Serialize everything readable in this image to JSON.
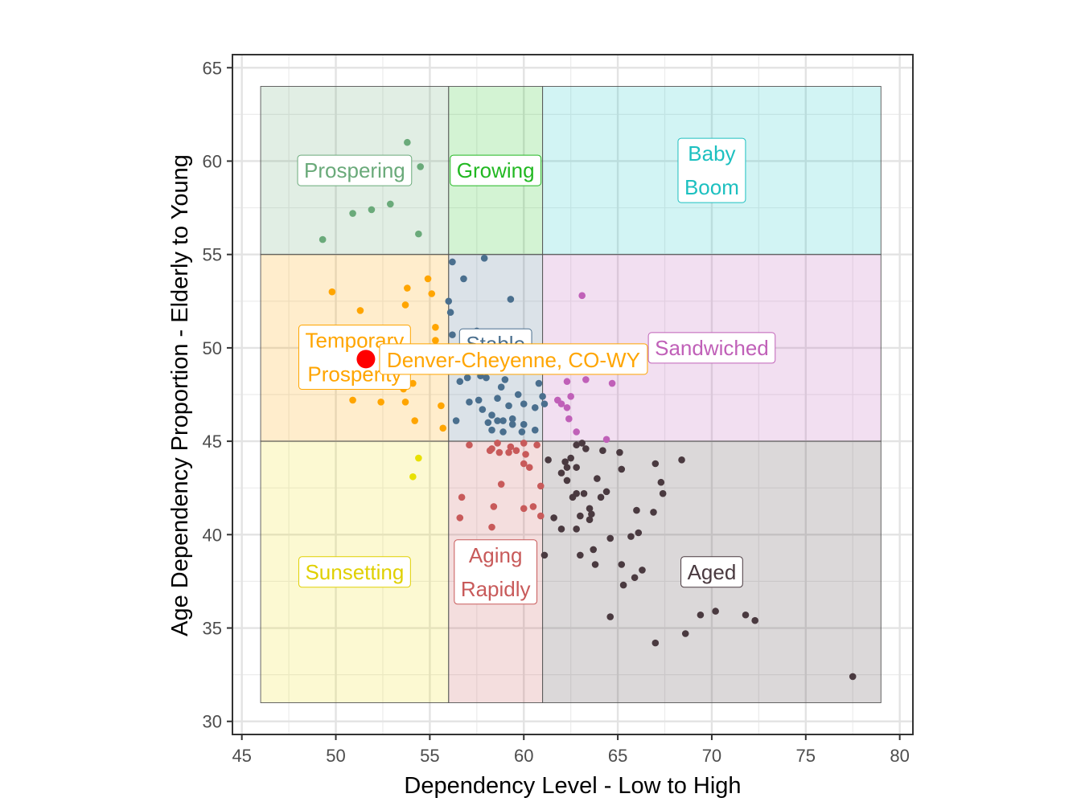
{
  "chart_data": {
    "type": "scatter",
    "xlabel": "Dependency Level - Low to High",
    "ylabel": "Age Dependency Proportion - Elderly to Young",
    "xlim": [
      44.5,
      80.7
    ],
    "ylim": [
      29.3,
      65.7
    ],
    "xticks": [
      "45",
      "50",
      "55",
      "60",
      "65",
      "70",
      "75",
      "80"
    ],
    "yticks": [
      "30",
      "35",
      "40",
      "45",
      "50",
      "55",
      "60",
      "65"
    ],
    "grid": true,
    "legend": "none",
    "regions": [
      {
        "label": "Prospering",
        "lines": [
          "Prospering"
        ],
        "x": [
          46,
          56
        ],
        "y": [
          55,
          64
        ],
        "fill": "#6aaa7a",
        "text_color": "#6aaa7a",
        "label_at": [
          51,
          59.5
        ]
      },
      {
        "label": "Growing",
        "lines": [
          "Growing"
        ],
        "x": [
          56,
          61
        ],
        "y": [
          55,
          64
        ],
        "fill": "#22c322",
        "text_color": "#22b822",
        "label_at": [
          58.5,
          59.5
        ]
      },
      {
        "label": "Baby Boom",
        "lines": [
          "Baby",
          "Boom"
        ],
        "x": [
          61,
          79
        ],
        "y": [
          55,
          64
        ],
        "fill": "#1dc9c7",
        "text_color": "#1dc0c0",
        "label_at": [
          70,
          59.5
        ]
      },
      {
        "label": "Temporary Prosperity",
        "lines": [
          "Temporary",
          "Prosperity"
        ],
        "x": [
          46,
          56
        ],
        "y": [
          45,
          55
        ],
        "fill": "#ffa500",
        "text_color": "#ffa500",
        "label_at": [
          51,
          49.5
        ]
      },
      {
        "label": "Stable",
        "lines": [
          "Stable"
        ],
        "x": [
          56,
          61
        ],
        "y": [
          45,
          55
        ],
        "fill": "#4a6f8e",
        "text_color": "#4a6f8e",
        "label_at": [
          58.5,
          50.2
        ]
      },
      {
        "label": "Sandwiched",
        "lines": [
          "Sandwiched"
        ],
        "x": [
          61,
          79
        ],
        "y": [
          45,
          55
        ],
        "fill": "#c060b8",
        "text_color": "#c060b8",
        "label_at": [
          70,
          50
        ]
      },
      {
        "label": "Sunsetting",
        "lines": [
          "Sunsetting"
        ],
        "x": [
          46,
          56
        ],
        "y": [
          31,
          45
        ],
        "fill": "#f0e020",
        "text_color": "#e0d000",
        "label_at": [
          51,
          38
        ]
      },
      {
        "label": "Aging Rapidly",
        "lines": [
          "Aging",
          "Rapidly"
        ],
        "x": [
          56,
          61
        ],
        "y": [
          31,
          45
        ],
        "fill": "#c85a5a",
        "text_color": "#c85a5a",
        "label_at": [
          58.5,
          38
        ]
      },
      {
        "label": "Aged",
        "lines": [
          "Aged"
        ],
        "x": [
          61,
          79
        ],
        "y": [
          31,
          45
        ],
        "fill": "#4a3a40",
        "text_color": "#4a3a40",
        "label_at": [
          70,
          38
        ]
      }
    ],
    "highlight": {
      "label": "Denver-Cheyenne, CO-WY",
      "x": 51.6,
      "y": 49.4,
      "color": "#ff0000",
      "text_color": "#ffa500"
    },
    "series": [
      {
        "group": "Prospering",
        "color": "#6aaa7a",
        "points": [
          [
            53.8,
            61.0
          ],
          [
            54.5,
            59.7
          ],
          [
            50.9,
            57.2
          ],
          [
            51.9,
            57.4
          ],
          [
            52.9,
            57.7
          ],
          [
            54.4,
            56.1
          ],
          [
            49.3,
            55.8
          ]
        ]
      },
      {
        "group": "Temporary Prosperity",
        "color": "#ffa500",
        "points": [
          [
            49.8,
            53.0
          ],
          [
            53.8,
            53.2
          ],
          [
            54.9,
            53.7
          ],
          [
            55.1,
            52.9
          ],
          [
            53.7,
            52.3
          ],
          [
            51.3,
            52.0
          ],
          [
            55.3,
            51.1
          ],
          [
            55.3,
            50.4
          ],
          [
            53.6,
            47.8
          ],
          [
            54.1,
            48.1
          ],
          [
            50.9,
            47.2
          ],
          [
            52.4,
            47.1
          ],
          [
            53.7,
            47.1
          ],
          [
            55.6,
            46.9
          ],
          [
            54.2,
            46.1
          ],
          [
            55.7,
            45.7
          ]
        ]
      },
      {
        "group": "Stable",
        "color": "#4a6f8e",
        "points": [
          [
            56.2,
            54.6
          ],
          [
            57.9,
            54.8
          ],
          [
            56.8,
            53.7
          ],
          [
            59.3,
            52.6
          ],
          [
            56.0,
            52.5
          ],
          [
            56.1,
            51.9
          ],
          [
            56.2,
            50.7
          ],
          [
            57.5,
            50.9
          ],
          [
            58.0,
            50.2
          ],
          [
            59.1,
            50.6
          ],
          [
            60.3,
            49.8
          ],
          [
            57.0,
            49.5
          ],
          [
            58.6,
            49.4
          ],
          [
            59.6,
            49.2
          ],
          [
            60.1,
            49.0
          ],
          [
            58.3,
            48.9
          ],
          [
            57.7,
            48.5
          ],
          [
            59.0,
            48.3
          ],
          [
            56.6,
            48.2
          ],
          [
            57.0,
            48.4
          ],
          [
            58.0,
            48.4
          ],
          [
            60.8,
            48.1
          ],
          [
            58.8,
            47.9
          ],
          [
            59.7,
            47.5
          ],
          [
            61.0,
            47.4
          ],
          [
            57.1,
            47.1
          ],
          [
            57.6,
            47.2
          ],
          [
            58.6,
            47.3
          ],
          [
            60.0,
            47.0
          ],
          [
            60.6,
            46.8
          ],
          [
            61.1,
            47.0
          ],
          [
            57.8,
            46.7
          ],
          [
            58.3,
            46.4
          ],
          [
            59.2,
            46.9
          ],
          [
            59.4,
            46.2
          ],
          [
            56.4,
            46.1
          ],
          [
            58.1,
            46.0
          ],
          [
            58.6,
            46.1
          ],
          [
            58.9,
            46.1
          ],
          [
            59.4,
            45.9
          ],
          [
            60.0,
            45.9
          ],
          [
            60.6,
            45.6
          ],
          [
            58.3,
            45.6
          ],
          [
            58.9,
            45.5
          ],
          [
            59.9,
            45.5
          ]
        ]
      },
      {
        "group": "Sandwiched",
        "color": "#c060b8",
        "points": [
          [
            63.1,
            52.8
          ],
          [
            62.3,
            48.2
          ],
          [
            63.3,
            48.3
          ],
          [
            64.7,
            48.1
          ],
          [
            62.5,
            47.4
          ],
          [
            61.8,
            47.2
          ],
          [
            62.3,
            46.8
          ],
          [
            62.4,
            46.2
          ],
          [
            62.8,
            45.5
          ],
          [
            64.4,
            45.1
          ],
          [
            62.0,
            47.0
          ]
        ]
      },
      {
        "group": "Sunsetting",
        "color": "#e8e000",
        "points": [
          [
            54.4,
            44.1
          ],
          [
            54.1,
            43.1
          ]
        ]
      },
      {
        "group": "Aging Rapidly",
        "color": "#c85a5a",
        "points": [
          [
            57.1,
            44.8
          ],
          [
            58.3,
            44.6
          ],
          [
            58.6,
            44.9
          ],
          [
            59.3,
            44.7
          ],
          [
            60.0,
            44.9
          ],
          [
            60.7,
            44.8
          ],
          [
            58.2,
            44.5
          ],
          [
            58.7,
            44.4
          ],
          [
            59.2,
            44.4
          ],
          [
            59.6,
            44.5
          ],
          [
            60.1,
            44.3
          ],
          [
            60.0,
            43.8
          ],
          [
            60.3,
            43.6
          ],
          [
            60.9,
            42.6
          ],
          [
            58.8,
            42.7
          ],
          [
            56.7,
            42.0
          ],
          [
            58.4,
            41.5
          ],
          [
            60.0,
            41.4
          ],
          [
            60.5,
            41.5
          ],
          [
            60.9,
            41.0
          ],
          [
            56.6,
            40.9
          ],
          [
            58.3,
            40.4
          ]
        ]
      },
      {
        "group": "Aged",
        "color": "#4a3a40",
        "points": [
          [
            62.8,
            44.8
          ],
          [
            63.1,
            44.9
          ],
          [
            63.3,
            44.6
          ],
          [
            64.2,
            44.5
          ],
          [
            65.1,
            44.4
          ],
          [
            62.5,
            44.1
          ],
          [
            61.3,
            44.0
          ],
          [
            62.2,
            43.9
          ],
          [
            62.3,
            43.6
          ],
          [
            62.0,
            43.3
          ],
          [
            62.8,
            43.6
          ],
          [
            62.3,
            42.9
          ],
          [
            65.2,
            43.5
          ],
          [
            67.0,
            43.8
          ],
          [
            68.4,
            44.0
          ],
          [
            63.9,
            43.0
          ],
          [
            62.8,
            42.2
          ],
          [
            63.2,
            42.2
          ],
          [
            64.1,
            42.0
          ],
          [
            64.4,
            42.3
          ],
          [
            62.6,
            42.0
          ],
          [
            67.3,
            42.8
          ],
          [
            67.4,
            42.2
          ],
          [
            63.0,
            41.0
          ],
          [
            63.5,
            41.4
          ],
          [
            63.6,
            41.1
          ],
          [
            66.0,
            41.3
          ],
          [
            66.9,
            41.2
          ],
          [
            61.6,
            40.9
          ],
          [
            63.5,
            40.8
          ],
          [
            62.8,
            40.3
          ],
          [
            62.0,
            40.3
          ],
          [
            64.6,
            39.8
          ],
          [
            65.7,
            39.9
          ],
          [
            66.1,
            40.1
          ],
          [
            63.0,
            38.9
          ],
          [
            63.7,
            39.2
          ],
          [
            61.1,
            38.9
          ],
          [
            65.2,
            38.4
          ],
          [
            66.3,
            38.1
          ],
          [
            63.8,
            38.4
          ],
          [
            65.9,
            37.7
          ],
          [
            65.3,
            37.3
          ],
          [
            64.6,
            35.6
          ],
          [
            69.4,
            35.7
          ],
          [
            70.2,
            35.9
          ],
          [
            71.8,
            35.7
          ],
          [
            72.3,
            35.4
          ],
          [
            67.0,
            34.2
          ],
          [
            68.6,
            34.7
          ],
          [
            77.5,
            32.4
          ]
        ]
      }
    ]
  }
}
